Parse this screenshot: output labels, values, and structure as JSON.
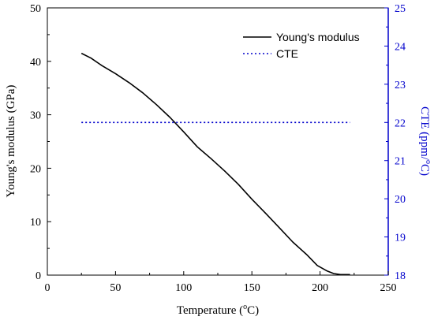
{
  "chart_data": {
    "type": "line",
    "xlabel": "Temperature (°C)",
    "xlabel_parts": {
      "prefix": "Temperature (",
      "sup": "o",
      "suffix": "C)"
    },
    "ylabel_left": "Young's modulus (GPa)",
    "ylabel_right": "CTE (ppm/°C)",
    "ylabel_right_parts": {
      "prefix": "CTE (ppm/",
      "sup": "o",
      "suffix": "C)"
    },
    "xlim": [
      0,
      250
    ],
    "ylim_left": [
      0,
      50
    ],
    "ylim_right": [
      18,
      25
    ],
    "x_ticks": [
      0,
      50,
      100,
      150,
      200,
      250
    ],
    "y_left_ticks": [
      0,
      10,
      20,
      30,
      40,
      50
    ],
    "y_right_ticks": [
      18,
      19,
      20,
      21,
      22,
      23,
      24,
      25
    ],
    "legend_position": "top-right",
    "series": [
      {
        "name": "Young's modulus",
        "axis": "left",
        "color": "#000000",
        "style": "solid",
        "x": [
          25,
          32,
          40,
          50,
          60,
          70,
          80,
          90,
          100,
          110,
          120,
          130,
          140,
          150,
          160,
          170,
          180,
          190,
          198,
          205,
          210,
          215,
          222
        ],
        "y": [
          41.5,
          40.6,
          39.2,
          37.7,
          36.0,
          34.1,
          31.9,
          29.5,
          26.8,
          24.0,
          21.8,
          19.5,
          17.0,
          14.2,
          11.6,
          8.9,
          6.2,
          3.9,
          1.8,
          0.8,
          0.3,
          0.1,
          0.1
        ]
      },
      {
        "name": "CTE",
        "axis": "right",
        "color": "#0000cc",
        "style": "dotted",
        "x": [
          25,
          222
        ],
        "y": [
          22,
          22
        ]
      }
    ]
  }
}
